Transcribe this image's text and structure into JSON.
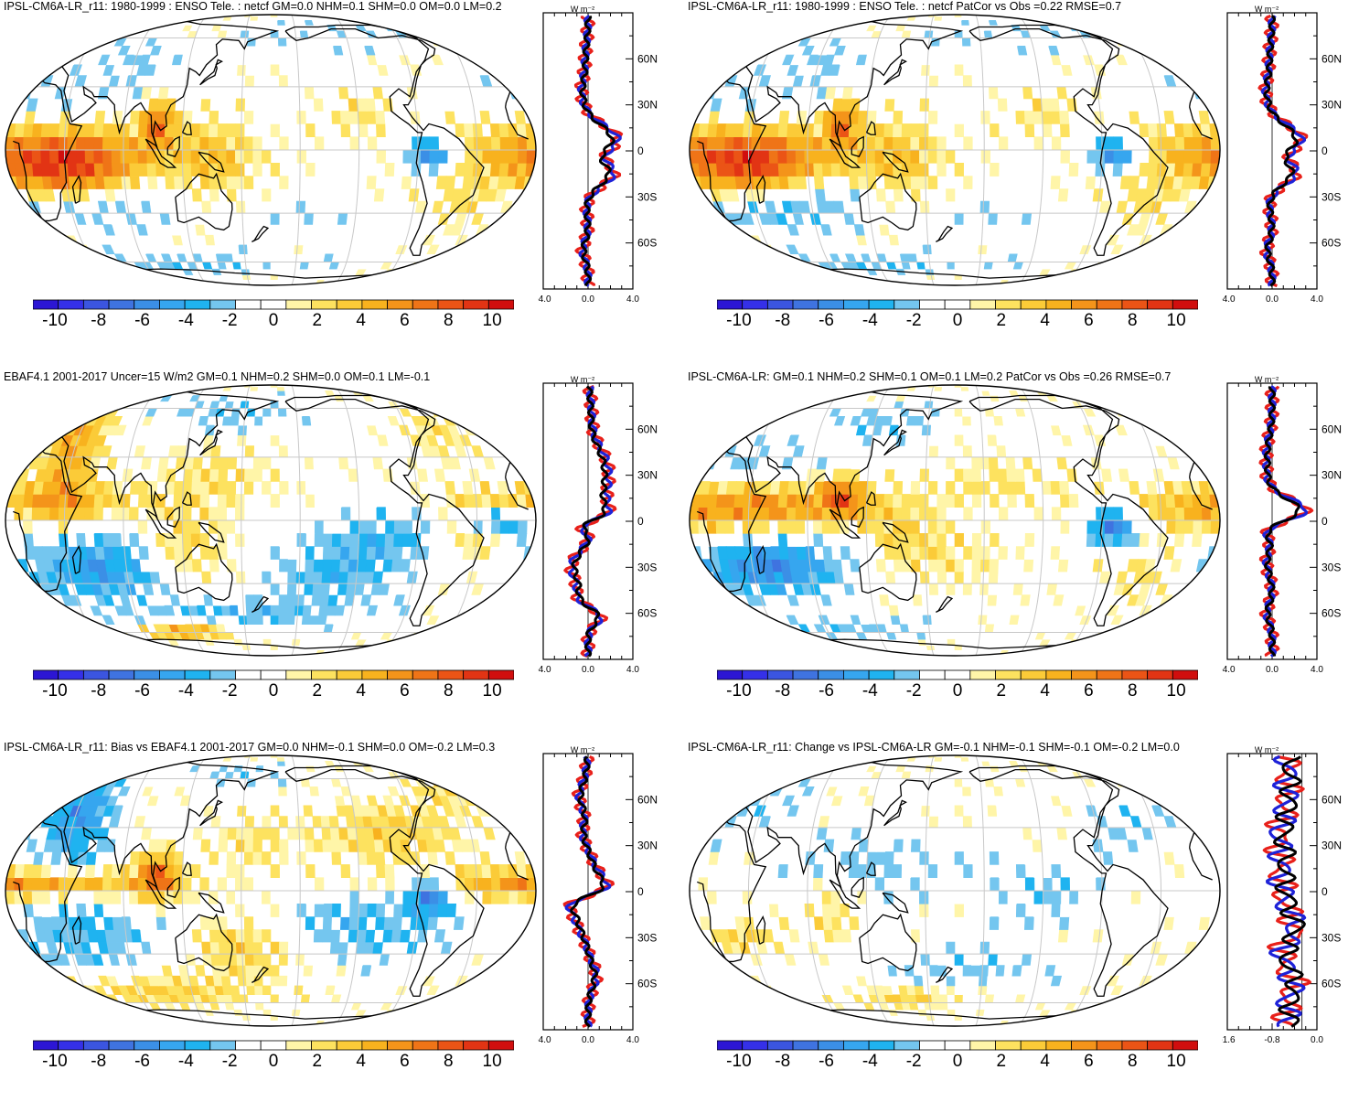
{
  "figure": {
    "colorbar": {
      "colors": [
        "#2c16d4",
        "#3530e8",
        "#3b55e0",
        "#3f73e0",
        "#3b8fe6",
        "#36a6ef",
        "#1fb3f0",
        "#74c6ef",
        "#ffffff",
        "#ffffff",
        "#fff5a8",
        "#fde25f",
        "#fbcb38",
        "#f8b21e",
        "#f4941a",
        "#ef7417",
        "#eb5416",
        "#e23414",
        "#d10e0e"
      ],
      "tick_labels": [
        "-10",
        "-8",
        "-6",
        "-4",
        "-2",
        "0",
        "2",
        "4",
        "6",
        "8",
        "10"
      ],
      "tick_values": [
        -10,
        -8,
        -6,
        -4,
        -2,
        0,
        2,
        4,
        6,
        8,
        10
      ],
      "range": [
        -11,
        11
      ]
    },
    "panels": [
      {
        "id": "p1",
        "title": "IPSL-CM6A-LR_r11: 1980-1999 : ENSO Tele. : netcf GM=0.0 NHM=0.1 SHM=0.0 OM=0.0 LM=0.2",
        "lat_labels": [
          "60N",
          "30N",
          "0",
          "30S",
          "60S"
        ],
        "unit_label": "W m⁻²",
        "x_tick_labels": [
          "-4.0",
          "0.0",
          "4.0"
        ],
        "x_range": [
          -4,
          4
        ],
        "profile_colors": [
          "#e8201a",
          "#1e22d8",
          "#000000"
        ],
        "pattern": [
          [
            -5,
            -155,
            6,
            60,
            12,
            8
          ],
          [
            -15,
            -140,
            6,
            30,
            10,
            6
          ],
          [
            -5,
            105,
            -7,
            12,
            6,
            6
          ],
          [
            10,
            -80,
            6,
            8,
            8,
            6
          ],
          [
            -25,
            -130,
            -4,
            40,
            10,
            6
          ],
          [
            -8,
            -40,
            3,
            20,
            12,
            6
          ],
          [
            20,
            -160,
            -2,
            40,
            10,
            4
          ],
          [
            -30,
            130,
            2,
            15,
            10,
            4
          ],
          [
            40,
            -100,
            -2,
            20,
            8,
            4
          ],
          [
            60,
            40,
            -1,
            50,
            10,
            4
          ],
          [
            -65,
            -60,
            -2,
            60,
            6,
            4
          ],
          [
            -35,
            30,
            -1,
            40,
            8,
            4
          ],
          [
            15,
            55,
            2,
            15,
            8,
            4
          ]
        ]
      },
      {
        "id": "p2",
        "title": "IPSL-CM6A-LR_r11: 1980-1999 : ENSO Tele. : netcf PatCor vs Obs =0.22 RMSE=0.7",
        "lat_labels": [
          "60N",
          "30N",
          "0",
          "30S",
          "60S"
        ],
        "unit_label": "W m⁻²",
        "x_tick_labels": [
          "-4.0",
          "0.0",
          "4.0"
        ],
        "x_range": [
          -4,
          4
        ],
        "profile_colors": [
          "#e8201a",
          "#1e22d8",
          "#000000"
        ],
        "pattern": [
          [
            -5,
            -155,
            6,
            60,
            12,
            8
          ],
          [
            -15,
            -140,
            6,
            30,
            10,
            6
          ],
          [
            -5,
            105,
            -7,
            12,
            6,
            6
          ],
          [
            10,
            -80,
            6,
            8,
            8,
            6
          ],
          [
            -25,
            -130,
            -5,
            40,
            10,
            6
          ],
          [
            -8,
            -40,
            3,
            20,
            12,
            6
          ],
          [
            20,
            -160,
            -2,
            40,
            10,
            4
          ],
          [
            -30,
            130,
            2,
            15,
            10,
            4
          ],
          [
            40,
            -100,
            -2,
            20,
            8,
            4
          ],
          [
            60,
            40,
            -1,
            50,
            10,
            4
          ],
          [
            -65,
            -60,
            -2,
            60,
            6,
            4
          ],
          [
            -35,
            30,
            -1,
            40,
            8,
            4
          ],
          [
            15,
            55,
            2,
            15,
            8,
            4
          ]
        ]
      },
      {
        "id": "p3",
        "title": "EBAF4.1 2001-2017 Uncer=15 W/m2 GM=0.1 NHM=0.2 SHM=0.0 OM=0.1 LM=-0.1",
        "lat_labels": [
          "60N",
          "30N",
          "0",
          "30S",
          "60S"
        ],
        "unit_label": "W m⁻²",
        "x_tick_labels": [
          "-4.0",
          "0.0",
          "4.0"
        ],
        "x_range": [
          -4,
          4
        ],
        "profile_colors": [
          "#e8201a",
          "#1e22d8",
          "#000000"
        ],
        "pattern": [
          [
            5,
            -160,
            4,
            60,
            6,
            8
          ],
          [
            35,
            -145,
            5,
            15,
            25,
            6
          ],
          [
            -3,
            150,
            -6,
            20,
            4,
            6
          ],
          [
            -25,
            -125,
            -5,
            35,
            12,
            6
          ],
          [
            -10,
            80,
            -3,
            40,
            10,
            6
          ],
          [
            -10,
            130,
            3,
            20,
            10,
            4
          ],
          [
            -50,
            -30,
            -3,
            60,
            6,
            4
          ],
          [
            -62,
            -70,
            5,
            25,
            5,
            4
          ],
          [
            20,
            -40,
            2,
            30,
            10,
            4
          ],
          [
            40,
            120,
            2,
            20,
            12,
            4
          ],
          [
            -30,
            40,
            -3,
            30,
            10,
            4
          ],
          [
            55,
            -30,
            -2,
            40,
            10,
            4
          ],
          [
            -15,
            -60,
            3,
            20,
            12,
            4
          ]
        ]
      },
      {
        "id": "p4",
        "title": "IPSL-CM6A-LR: GM=0.1 NHM=0.2 SHM=0.1 OM=0.1 LM=0.2 PatCor vs Obs =0.26 RMSE=0.7",
        "lat_labels": [
          "60N",
          "30N",
          "0",
          "30S",
          "60S"
        ],
        "unit_label": "W m⁻²",
        "x_tick_labels": [
          "-4.0",
          "0.0",
          "4.0"
        ],
        "x_range": [
          -4,
          4
        ],
        "profile_colors": [
          "#e8201a",
          "#1e22d8",
          "#000000"
        ],
        "pattern": [
          [
            3,
            -150,
            6,
            65,
            8,
            8
          ],
          [
            -5,
            105,
            -7,
            12,
            6,
            6
          ],
          [
            8,
            -80,
            6,
            10,
            6,
            6
          ],
          [
            -25,
            -130,
            -6,
            35,
            10,
            6
          ],
          [
            -20,
            -10,
            2,
            30,
            10,
            4
          ],
          [
            -30,
            130,
            2,
            20,
            10,
            4
          ],
          [
            25,
            -150,
            -2,
            30,
            8,
            4
          ],
          [
            -60,
            -90,
            -2,
            50,
            6,
            4
          ],
          [
            45,
            -60,
            -2,
            30,
            10,
            4
          ],
          [
            -8,
            -40,
            2,
            15,
            10,
            4
          ],
          [
            15,
            30,
            2,
            30,
            8,
            4
          ]
        ]
      },
      {
        "id": "p5",
        "title": "IPSL-CM6A-LR_r11: Bias vs EBAF4.1 2001-2017 GM=0.0 NHM=-0.1 SHM=0.0 OM=-0.2 LM=0.3",
        "lat_labels": [
          "60N",
          "30N",
          "0",
          "30S",
          "60S"
        ],
        "unit_label": "W m⁻²",
        "x_tick_labels": [
          "-4.0",
          "0.0",
          "4.0"
        ],
        "x_range": [
          -4,
          4
        ],
        "profile_colors": [
          "#e8201a",
          "#1e22d8",
          "#000000"
        ],
        "pattern": [
          [
            0,
            -170,
            6,
            70,
            5,
            8
          ],
          [
            5,
            -80,
            6,
            10,
            8,
            6
          ],
          [
            35,
            -140,
            -5,
            18,
            22,
            6
          ],
          [
            -5,
            105,
            -7,
            12,
            6,
            6
          ],
          [
            -25,
            -130,
            -3,
            35,
            12,
            6
          ],
          [
            -20,
            60,
            -3,
            40,
            12,
            4
          ],
          [
            -30,
            -20,
            3,
            30,
            10,
            4
          ],
          [
            25,
            80,
            3,
            40,
            12,
            4
          ],
          [
            50,
            150,
            3,
            30,
            8,
            4
          ],
          [
            -55,
            -80,
            3,
            50,
            8,
            4
          ],
          [
            20,
            -20,
            2,
            20,
            10,
            4
          ],
          [
            60,
            -30,
            -2,
            30,
            8,
            4
          ]
        ]
      },
      {
        "id": "p6",
        "title": "IPSL-CM6A-LR_r11: Change vs IPSL-CM6A-LR GM=-0.1 NHM=-0.1 SHM=-0.1 OM=-0.2 LM=0.0",
        "lat_labels": [
          "60N",
          "30N",
          "0",
          "30S",
          "60S"
        ],
        "unit_label": "W m⁻²",
        "x_tick_labels": [
          "-1.6",
          "-0.8",
          "0.0"
        ],
        "x_range": [
          -2,
          0.4
        ],
        "profile_colors": [
          "#e8201a",
          "#1e22d8",
          "#000000"
        ],
        "pattern": [
          [
            -25,
            -150,
            3,
            15,
            5,
            6
          ],
          [
            -60,
            -40,
            3,
            30,
            5,
            4
          ],
          [
            10,
            -60,
            -2,
            40,
            8,
            4
          ],
          [
            30,
            120,
            -2,
            20,
            10,
            4
          ],
          [
            -40,
            0,
            -2,
            40,
            8,
            4
          ],
          [
            40,
            -160,
            -2,
            30,
            10,
            4
          ],
          [
            -5,
            60,
            -2,
            30,
            10,
            4
          ],
          [
            -15,
            -90,
            2,
            15,
            10,
            4
          ]
        ]
      }
    ]
  }
}
